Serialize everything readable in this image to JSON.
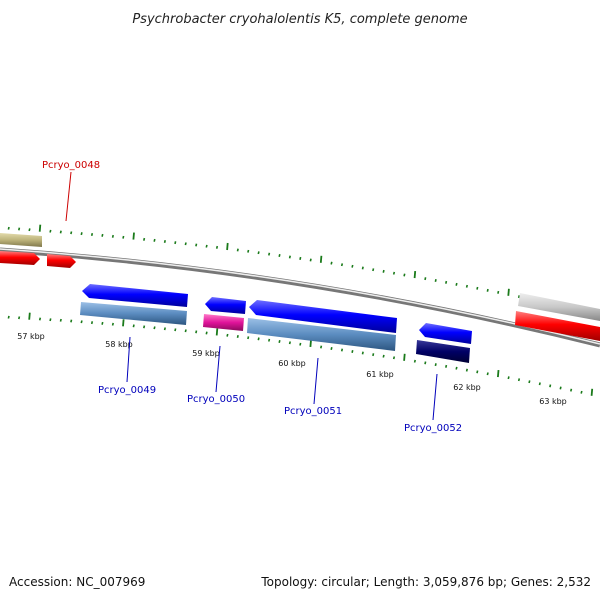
{
  "title": "Psychrobacter cryohalolentis K5, complete genome",
  "footer": {
    "accession": "Accession: NC_007969",
    "summary": "Topology: circular; Length: 3,059,876 bp; Genes: 2,532"
  },
  "ruler": {
    "labels": [
      "57 kbp",
      "58 kbp",
      "59 kbp",
      "60 kbp",
      "61 kbp",
      "62 kbp",
      "63 kbp"
    ]
  },
  "genes": [
    {
      "id": "Pcryo_0048",
      "strand": "+",
      "color": "#cc0000"
    },
    {
      "id": "Pcryo_0049",
      "strand": "-",
      "color": "#0000bb"
    },
    {
      "id": "Pcryo_0050",
      "strand": "-",
      "color": "#0000bb"
    },
    {
      "id": "Pcryo_0051",
      "strand": "-",
      "color": "#0000bb"
    },
    {
      "id": "Pcryo_0052",
      "strand": "-",
      "color": "#0000bb"
    }
  ],
  "colors": {
    "tick": "#1a7a1a",
    "backbone": "#888888",
    "forward_gene": "#ff0000",
    "reverse_gene": "#0000ff",
    "cog_steelblue": "#5b8cc0",
    "cog_magenta": "#e0139a",
    "cog_navy": "#000066",
    "cog_khaki": "#bdb37a",
    "cog_gray": "#c8c8c8"
  }
}
